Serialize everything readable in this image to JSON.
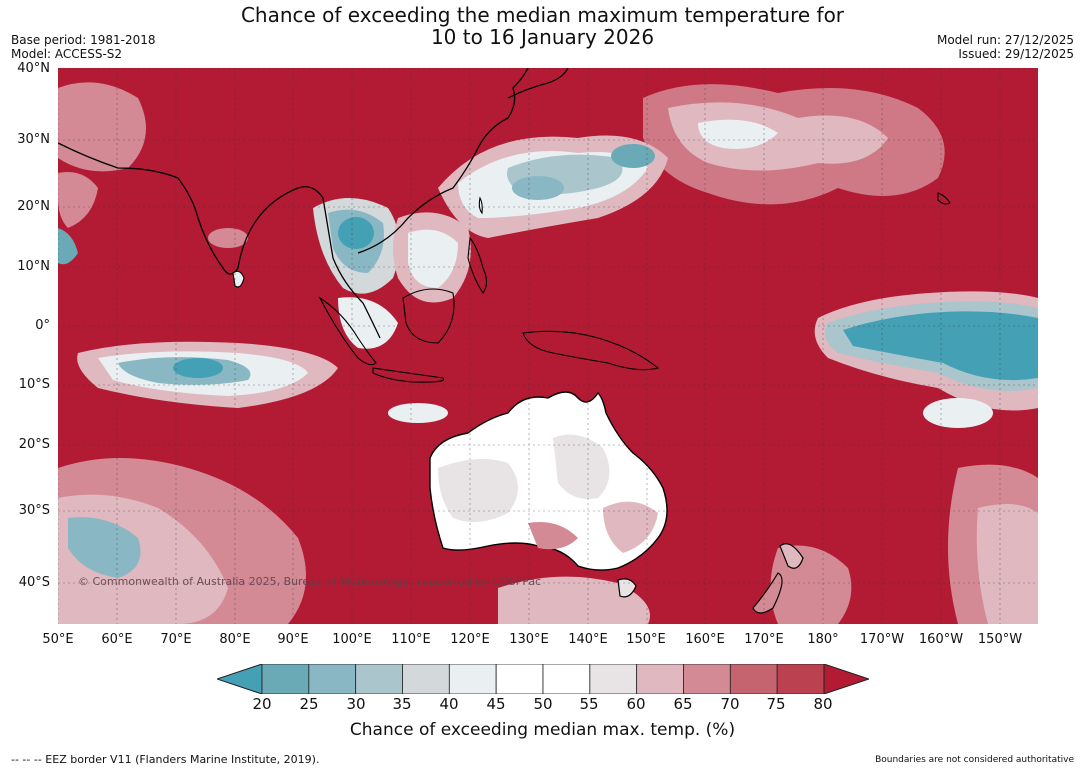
{
  "title_line1": "Chance of exceeding the median maximum temperature for",
  "title_line2": "10 to 16 January 2026",
  "base_period": "Base period: 1981-2018",
  "model": "Model: ACCESS-S2",
  "model_run": "Model run: 27/12/2025",
  "issued": "Issued: 29/12/2025",
  "lat_labels": [
    "40°N",
    "30°N",
    "20°N",
    "10°N",
    "0°",
    "10°S",
    "20°S",
    "30°S",
    "40°S"
  ],
  "lon_labels": [
    "50°E",
    "60°E",
    "70°E",
    "80°E",
    "90°E",
    "100°E",
    "110°E",
    "120°E",
    "130°E",
    "140°E",
    "150°E",
    "160°E",
    "170°E",
    "180°",
    "170°W",
    "160°W",
    "150°W"
  ],
  "copyright": "© Commonwealth of Australia 2025, Bureau of Meteorology, supported by COSPPac",
  "colorbar": {
    "title": "Chance of exceeding median max. temp. (%)",
    "ticks": [
      "20",
      "25",
      "30",
      "35",
      "40",
      "45",
      "50",
      "55",
      "60",
      "65",
      "70",
      "75",
      "80"
    ],
    "colors": [
      "#44a0b4",
      "#6aa9b6",
      "#89b8c4",
      "#aac5cc",
      "#d3d9db",
      "#eaeff1",
      "#ffffff",
      "#ffffff",
      "#e8e4e5",
      "#e0b8bf",
      "#d38a95",
      "#c5636f",
      "#bb4050",
      "#b31b34"
    ]
  },
  "eez_note": "--  --  -- EEZ border V11 (Flanders Marine Institute, 2019).",
  "disclaimer": "Boundaries are not considered authoritative"
}
